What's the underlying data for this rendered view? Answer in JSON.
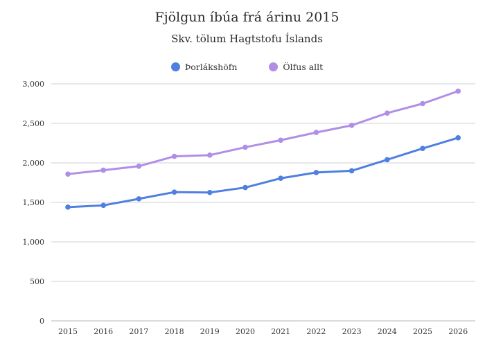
{
  "chart_data": {
    "type": "line",
    "title": "Fjölgun íbúa frá árinu 2015",
    "subtitle": "Skv. tölum Hagtstofu Íslands",
    "xlabel": "",
    "ylabel": "",
    "ylim": [
      0,
      3000
    ],
    "yticks": [
      0,
      500,
      1000,
      1500,
      2000,
      2500,
      3000
    ],
    "ytick_labels": [
      "0",
      "500",
      "1,000",
      "1,500",
      "2,000",
      "2,500",
      "3,000"
    ],
    "x": [
      "2015",
      "2016",
      "2017",
      "2018",
      "2019",
      "2020",
      "2021",
      "2022",
      "2023",
      "2024",
      "2025",
      "2026"
    ],
    "grid": true,
    "legend_position": "top-center",
    "series": [
      {
        "name": "Þorlákshöfn",
        "color": "#4f7fe0",
        "values": [
          1440,
          1462,
          1545,
          1630,
          1625,
          1688,
          1805,
          1878,
          1900,
          2040,
          2183,
          2317
        ]
      },
      {
        "name": "Ölfus allt",
        "color": "#b18ee6",
        "values": [
          1858,
          1907,
          1958,
          2083,
          2098,
          2198,
          2287,
          2385,
          2475,
          2630,
          2750,
          2908
        ]
      }
    ]
  }
}
